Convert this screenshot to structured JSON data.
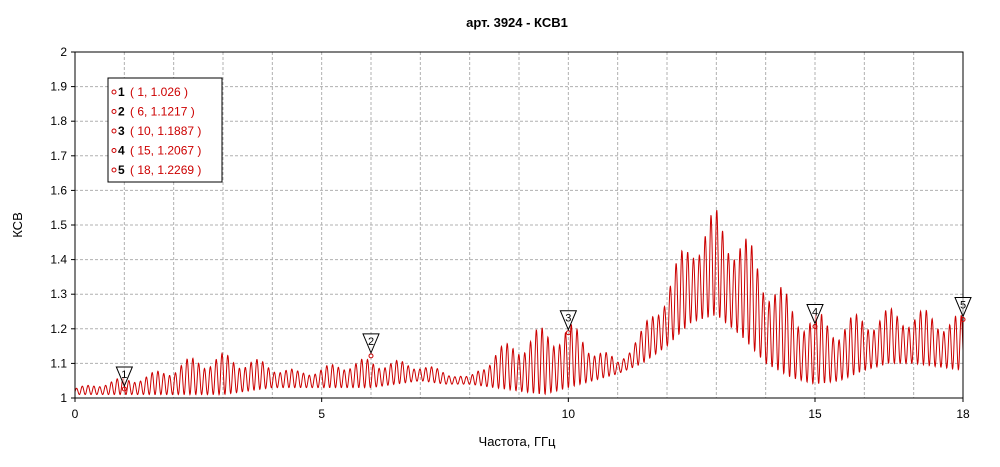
{
  "chart_data": {
    "type": "line",
    "title": "арт. 3924 - КСВ1",
    "xlabel": "Частота, ГГц",
    "ylabel": "КСВ",
    "xlim": [
      0,
      18
    ],
    "ylim": [
      1,
      2
    ],
    "x_ticks": [
      "0",
      "5",
      "10",
      "15",
      "18"
    ],
    "y_ticks": [
      "1",
      "1.1",
      "1.2",
      "1.3",
      "1.4",
      "1.5",
      "1.6",
      "1.7",
      "1.8",
      "1.9",
      "2"
    ],
    "x_ticks_values": [
      0,
      5,
      10,
      15,
      18
    ],
    "y_ticks_values": [
      1,
      1.1,
      1.2,
      1.3,
      1.4,
      1.5,
      1.6,
      1.7,
      1.8,
      1.9,
      2
    ],
    "grid": true,
    "legend_position": "top-left",
    "series": [
      {
        "color": "#cc0000",
        "envelope_x": [
          0,
          0.5,
          1,
          1.5,
          2,
          2.5,
          3,
          3.5,
          4,
          4.5,
          5,
          5.5,
          6,
          6.5,
          7,
          7.5,
          8,
          8.5,
          9,
          9.5,
          10,
          10.5,
          11,
          11.5,
          12,
          12.5,
          13,
          13.5,
          14,
          14.5,
          15,
          15.5,
          16,
          16.5,
          17,
          17.5,
          18
        ],
        "envelope_min": [
          1.01,
          1.01,
          1.01,
          1.01,
          1.01,
          1.01,
          1.01,
          1.02,
          1.03,
          1.03,
          1.03,
          1.03,
          1.03,
          1.04,
          1.05,
          1.04,
          1.04,
          1.03,
          1.02,
          1.01,
          1.03,
          1.05,
          1.07,
          1.1,
          1.15,
          1.22,
          1.24,
          1.18,
          1.1,
          1.06,
          1.04,
          1.05,
          1.08,
          1.1,
          1.1,
          1.09,
          1.08
        ],
        "envelope_max": [
          1.03,
          1.045,
          1.06,
          1.07,
          1.1,
          1.125,
          1.13,
          1.12,
          1.1,
          1.08,
          1.09,
          1.11,
          1.115,
          1.11,
          1.1,
          1.08,
          1.06,
          1.14,
          1.18,
          1.21,
          1.225,
          1.16,
          1.11,
          1.2,
          1.34,
          1.49,
          1.55,
          1.49,
          1.39,
          1.29,
          1.25,
          1.23,
          1.25,
          1.26,
          1.26,
          1.25,
          1.24
        ]
      }
    ],
    "markers": [
      {
        "id": "1",
        "x": 1,
        "y": 1.026,
        "label": "( 1, 1.026 )"
      },
      {
        "id": "2",
        "x": 6,
        "y": 1.1217,
        "label": "( 6, 1.1217 )"
      },
      {
        "id": "3",
        "x": 10,
        "y": 1.1887,
        "label": "( 10, 1.1887 )"
      },
      {
        "id": "4",
        "x": 15,
        "y": 1.2067,
        "label": "( 15, 1.2067 )"
      },
      {
        "id": "5",
        "x": 18,
        "y": 1.2269,
        "label": "( 18, 1.2269 )"
      }
    ]
  }
}
